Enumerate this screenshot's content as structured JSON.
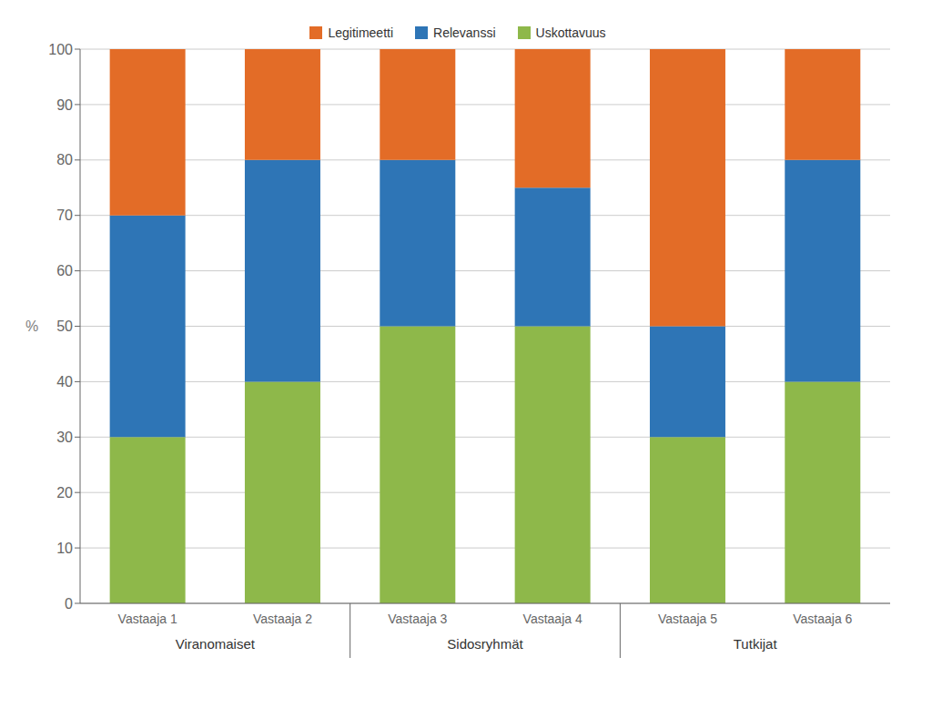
{
  "chart_data": {
    "type": "bar",
    "stacked": true,
    "categories": [
      "Vastaaja 1",
      "Vastaaja 2",
      "Vastaaja 3",
      "Vastaaja 4",
      "Vastaaja 5",
      "Vastaaja 6"
    ],
    "series": [
      {
        "name": "Uskottavuus",
        "color": "#8EB84A",
        "values": [
          30,
          40,
          50,
          50,
          30,
          40
        ]
      },
      {
        "name": "Relevanssi",
        "color": "#2E75B6",
        "values": [
          40,
          40,
          30,
          25,
          20,
          40
        ]
      },
      {
        "name": "Legitimeetti",
        "color": "#E36C27",
        "values": [
          30,
          20,
          20,
          25,
          50,
          20
        ]
      }
    ],
    "groups": [
      {
        "label": "Viranomaiset",
        "categories": [
          "Vastaaja 1",
          "Vastaaja 2"
        ]
      },
      {
        "label": "Sidosryhmät",
        "categories": [
          "Vastaaja 3",
          "Vastaaja 4"
        ]
      },
      {
        "label": "Tutkijat",
        "categories": [
          "Vastaaja 5",
          "Vastaaja 6"
        ]
      }
    ],
    "y_label": "%",
    "ylim": [
      0,
      100
    ],
    "yticks": [
      0,
      10,
      20,
      30,
      40,
      50,
      60,
      70,
      80,
      90,
      100
    ],
    "grid": true,
    "legend": "top"
  }
}
